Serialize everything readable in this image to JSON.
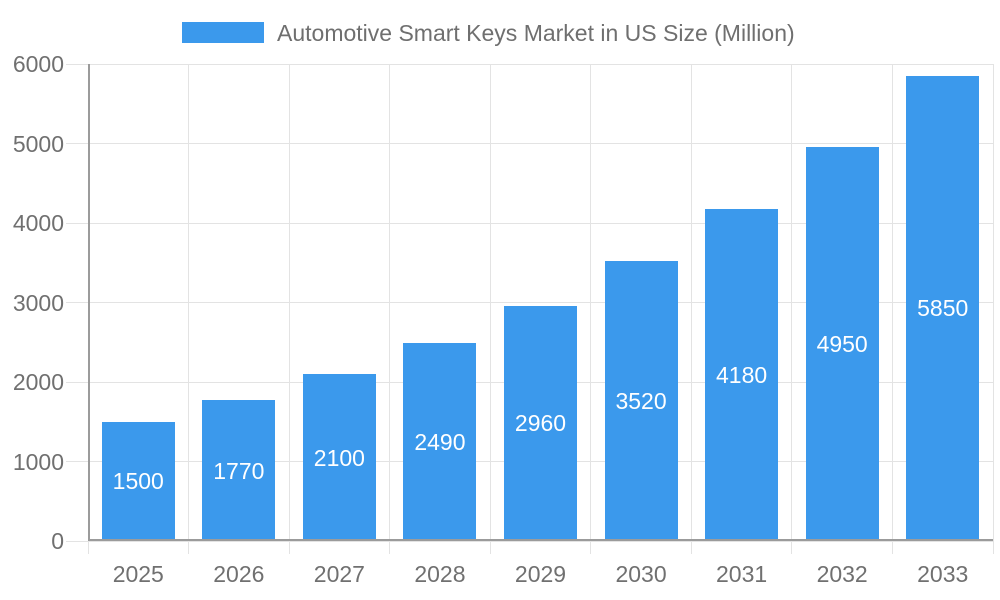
{
  "legend": {
    "label": "Automotive Smart Keys Market in US Size (Million)",
    "swatch_color": "#3b99ec"
  },
  "chart_data": {
    "type": "bar",
    "title": "Automotive Smart Keys Market in US Size (Million)",
    "categories": [
      "2025",
      "2026",
      "2027",
      "2028",
      "2029",
      "2030",
      "2031",
      "2032",
      "2033"
    ],
    "values": [
      1500,
      1770,
      2100,
      2490,
      2960,
      3520,
      4180,
      4950,
      5850
    ],
    "series_name": "Automotive Smart Keys Market in US Size (Million)",
    "xlabel": "",
    "ylabel": "",
    "ylim": [
      0,
      6000
    ],
    "yticks": [
      0,
      1000,
      2000,
      3000,
      4000,
      5000,
      6000
    ],
    "grid": true,
    "legend_position": "top",
    "value_labels": "inside-center-white",
    "bar_color": "#3b99ec",
    "value_label_color": "#ffffff",
    "grid_color": "#e3e3e3",
    "axis_color": "#9b9b9b",
    "tick_label_color": "#707070"
  }
}
